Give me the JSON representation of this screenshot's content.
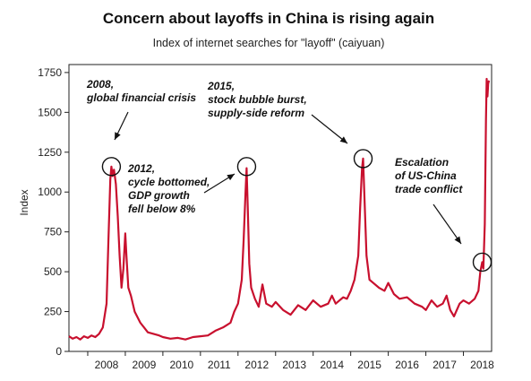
{
  "chart_data": {
    "type": "line",
    "title": "Concern about layoffs in China is rising again",
    "subtitle": "Index of internet searches for \"layoff\" (caiyuan)",
    "ylabel": "Index",
    "xlabel": "",
    "xlim": [
      2007.5,
      2018.75
    ],
    "ylim": [
      0,
      1800
    ],
    "y_ticks": [
      0,
      250,
      500,
      750,
      1000,
      1250,
      1500,
      1750
    ],
    "x_tick_labels": [
      "2008",
      "2009",
      "2010",
      "2011",
      "2012",
      "2013",
      "2014",
      "2015",
      "2016",
      "2017",
      "2018"
    ],
    "grid": false,
    "line_color": "#c8102e",
    "series": [
      {
        "name": "",
        "points": [
          [
            2007.5,
            95
          ],
          [
            2007.6,
            80
          ],
          [
            2007.7,
            90
          ],
          [
            2007.8,
            75
          ],
          [
            2007.9,
            95
          ],
          [
            2008.0,
            85
          ],
          [
            2008.1,
            100
          ],
          [
            2008.2,
            90
          ],
          [
            2008.3,
            110
          ],
          [
            2008.4,
            150
          ],
          [
            2008.5,
            300
          ],
          [
            2008.55,
            700
          ],
          [
            2008.6,
            1080
          ],
          [
            2008.63,
            1160
          ],
          [
            2008.66,
            1100
          ],
          [
            2008.7,
            1140
          ],
          [
            2008.75,
            1050
          ],
          [
            2008.8,
            850
          ],
          [
            2008.85,
            600
          ],
          [
            2008.9,
            400
          ],
          [
            2008.95,
            520
          ],
          [
            2009.0,
            740
          ],
          [
            2009.03,
            600
          ],
          [
            2009.08,
            400
          ],
          [
            2009.15,
            350
          ],
          [
            2009.25,
            250
          ],
          [
            2009.4,
            180
          ],
          [
            2009.5,
            150
          ],
          [
            2009.6,
            120
          ],
          [
            2009.75,
            110
          ],
          [
            2009.9,
            100
          ],
          [
            2010.0,
            90
          ],
          [
            2010.2,
            80
          ],
          [
            2010.4,
            85
          ],
          [
            2010.6,
            75
          ],
          [
            2010.8,
            90
          ],
          [
            2011.0,
            95
          ],
          [
            2011.2,
            100
          ],
          [
            2011.4,
            130
          ],
          [
            2011.6,
            150
          ],
          [
            2011.8,
            180
          ],
          [
            2011.9,
            250
          ],
          [
            2012.0,
            300
          ],
          [
            2012.1,
            450
          ],
          [
            2012.15,
            700
          ],
          [
            2012.2,
            1000
          ],
          [
            2012.23,
            1150
          ],
          [
            2012.26,
            900
          ],
          [
            2012.3,
            550
          ],
          [
            2012.35,
            400
          ],
          [
            2012.45,
            330
          ],
          [
            2012.55,
            280
          ],
          [
            2012.65,
            420
          ],
          [
            2012.75,
            300
          ],
          [
            2012.9,
            280
          ],
          [
            2013.0,
            310
          ],
          [
            2013.2,
            260
          ],
          [
            2013.4,
            230
          ],
          [
            2013.6,
            290
          ],
          [
            2013.8,
            260
          ],
          [
            2014.0,
            320
          ],
          [
            2014.2,
            280
          ],
          [
            2014.4,
            300
          ],
          [
            2014.5,
            350
          ],
          [
            2014.6,
            300
          ],
          [
            2014.8,
            340
          ],
          [
            2014.9,
            330
          ],
          [
            2015.0,
            380
          ],
          [
            2015.1,
            450
          ],
          [
            2015.2,
            600
          ],
          [
            2015.25,
            900
          ],
          [
            2015.3,
            1150
          ],
          [
            2015.33,
            1210
          ],
          [
            2015.36,
            1000
          ],
          [
            2015.42,
            600
          ],
          [
            2015.5,
            450
          ],
          [
            2015.6,
            430
          ],
          [
            2015.75,
            400
          ],
          [
            2015.9,
            380
          ],
          [
            2016.0,
            430
          ],
          [
            2016.15,
            360
          ],
          [
            2016.3,
            330
          ],
          [
            2016.5,
            340
          ],
          [
            2016.7,
            300
          ],
          [
            2016.9,
            280
          ],
          [
            2017.0,
            260
          ],
          [
            2017.15,
            320
          ],
          [
            2017.3,
            280
          ],
          [
            2017.45,
            300
          ],
          [
            2017.55,
            350
          ],
          [
            2017.65,
            260
          ],
          [
            2017.75,
            220
          ],
          [
            2017.9,
            300
          ],
          [
            2018.0,
            320
          ],
          [
            2018.15,
            300
          ],
          [
            2018.3,
            330
          ],
          [
            2018.4,
            380
          ],
          [
            2018.45,
            500
          ],
          [
            2018.5,
            560
          ],
          [
            2018.53,
            520
          ],
          [
            2018.57,
            800
          ],
          [
            2018.6,
            1450
          ],
          [
            2018.62,
            1710
          ],
          [
            2018.64,
            1600
          ],
          [
            2018.66,
            1680
          ],
          [
            2018.68,
            1700
          ]
        ]
      }
    ],
    "annotations": [
      {
        "lines": [
          "2008,",
          "global financial crisis"
        ],
        "x": 2008.63,
        "y": 1160
      },
      {
        "lines": [
          "2012,",
          "cycle bottomed,",
          "GDP growth",
          "fell below 8%"
        ],
        "x": 2012.23,
        "y": 1160
      },
      {
        "lines": [
          "2015,",
          "stock bubble burst,",
          "supply-side reform"
        ],
        "x": 2015.33,
        "y": 1210
      },
      {
        "lines": [
          "Escalation",
          "of US-China",
          "trade conflict"
        ],
        "x": 2018.5,
        "y": 560
      }
    ]
  }
}
